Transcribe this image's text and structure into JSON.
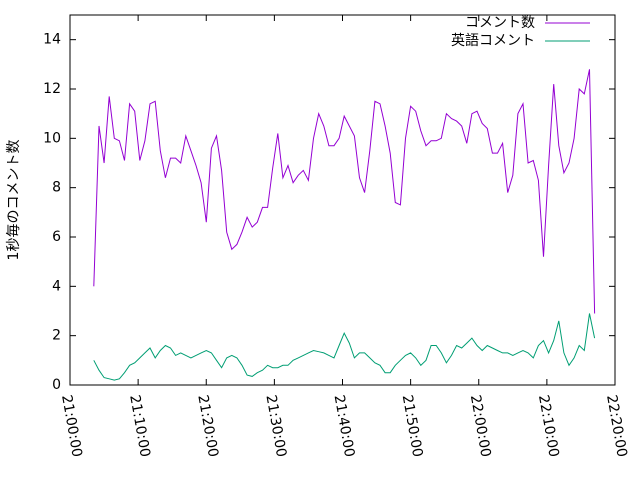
{
  "chart_data": {
    "type": "line",
    "ylabel": "1秒毎のコメント数",
    "x": [
      "21:03:30",
      "21:04:15",
      "21:05:00",
      "21:05:45",
      "21:06:30",
      "21:07:15",
      "21:08:00",
      "21:08:45",
      "21:09:30",
      "21:10:15",
      "21:11:00",
      "21:11:45",
      "21:12:30",
      "21:13:15",
      "21:14:00",
      "21:14:45",
      "21:15:30",
      "21:16:15",
      "21:17:00",
      "21:17:45",
      "21:18:30",
      "21:19:15",
      "21:20:00",
      "21:20:45",
      "21:21:30",
      "21:22:15",
      "21:23:00",
      "21:23:45",
      "21:24:30",
      "21:25:15",
      "21:26:00",
      "21:26:45",
      "21:27:30",
      "21:28:15",
      "21:29:00",
      "21:29:45",
      "21:30:30",
      "21:31:15",
      "21:32:00",
      "21:32:45",
      "21:33:30",
      "21:34:15",
      "21:35:00",
      "21:35:45",
      "21:36:30",
      "21:37:15",
      "21:38:00",
      "21:38:45",
      "21:39:30",
      "21:40:15",
      "21:41:00",
      "21:41:45",
      "21:42:30",
      "21:43:15",
      "21:44:00",
      "21:44:45",
      "21:45:30",
      "21:46:15",
      "21:47:00",
      "21:47:45",
      "21:48:30",
      "21:49:15",
      "21:50:00",
      "21:50:45",
      "21:51:30",
      "21:52:15",
      "21:53:00",
      "21:53:45",
      "21:54:30",
      "21:55:15",
      "21:56:00",
      "21:56:45",
      "21:57:30",
      "21:58:15",
      "21:59:00",
      "21:59:45",
      "22:00:30",
      "22:01:15",
      "22:02:00",
      "22:02:45",
      "22:03:30",
      "22:04:15",
      "22:05:00",
      "22:05:45",
      "22:06:30",
      "22:07:15",
      "22:08:00",
      "22:08:45",
      "22:09:30",
      "22:10:15",
      "22:11:00",
      "22:11:45",
      "22:12:30",
      "22:13:15",
      "22:14:00",
      "22:14:45",
      "22:15:30",
      "22:16:15",
      "22:17:00"
    ],
    "series": [
      {
        "name": "コメント数",
        "color": "#9400d3",
        "values": [
          4.0,
          10.5,
          9.0,
          11.7,
          10.0,
          9.9,
          9.1,
          11.4,
          11.1,
          9.1,
          9.9,
          11.4,
          11.5,
          9.5,
          8.4,
          9.2,
          9.2,
          9.0,
          10.1,
          9.5,
          8.9,
          8.2,
          6.6,
          9.6,
          10.1,
          8.7,
          6.2,
          5.5,
          5.7,
          6.2,
          6.8,
          6.4,
          6.6,
          7.2,
          7.2,
          8.8,
          10.2,
          8.4,
          8.9,
          8.2,
          8.5,
          8.7,
          8.3,
          10.0,
          11.0,
          10.5,
          9.7,
          9.7,
          10.0,
          10.9,
          10.5,
          10.1,
          8.4,
          7.8,
          9.5,
          11.5,
          11.4,
          10.5,
          9.4,
          7.4,
          7.3,
          10.0,
          11.3,
          11.1,
          10.3,
          9.7,
          9.9,
          9.9,
          10.0,
          11.0,
          10.8,
          10.7,
          10.5,
          9.8,
          11.0,
          11.1,
          10.6,
          10.4,
          9.4,
          9.4,
          9.8,
          7.8,
          8.5,
          11.0,
          11.4,
          9.0,
          9.1,
          8.3,
          5.2,
          8.9,
          12.2,
          9.7,
          8.6,
          9.0,
          10.0,
          12.0,
          11.8,
          12.8,
          2.9
        ]
      },
      {
        "name": "英語コメント",
        "color": "#009e73",
        "values": [
          1.0,
          0.6,
          0.3,
          0.25,
          0.2,
          0.25,
          0.5,
          0.8,
          0.9,
          1.1,
          1.3,
          1.5,
          1.1,
          1.4,
          1.6,
          1.5,
          1.2,
          1.3,
          1.2,
          1.1,
          1.2,
          1.3,
          1.4,
          1.3,
          1.0,
          0.7,
          1.1,
          1.2,
          1.1,
          0.8,
          0.4,
          0.35,
          0.5,
          0.6,
          0.8,
          0.7,
          0.7,
          0.8,
          0.8,
          1.0,
          1.1,
          1.2,
          1.3,
          1.4,
          1.35,
          1.3,
          1.2,
          1.1,
          1.6,
          2.1,
          1.7,
          1.1,
          1.3,
          1.3,
          1.1,
          0.9,
          0.8,
          0.5,
          0.5,
          0.8,
          1.0,
          1.2,
          1.3,
          1.1,
          0.8,
          1.0,
          1.6,
          1.6,
          1.3,
          0.9,
          1.2,
          1.6,
          1.5,
          1.7,
          1.9,
          1.6,
          1.4,
          1.6,
          1.5,
          1.4,
          1.3,
          1.3,
          1.2,
          1.3,
          1.4,
          1.3,
          1.1,
          1.6,
          1.8,
          1.3,
          1.8,
          2.6,
          1.3,
          0.8,
          1.1,
          1.6,
          1.4,
          2.9,
          1.9
        ]
      }
    ],
    "xlim": [
      "21:00:00",
      "22:20:00"
    ],
    "xticks": [
      "21:00:00",
      "21:10:00",
      "21:20:00",
      "21:30:00",
      "21:40:00",
      "21:50:00",
      "22:00:00",
      "22:10:00",
      "22:20:00"
    ],
    "ylim": [
      0,
      15
    ],
    "yticks": [
      0,
      2,
      4,
      6,
      8,
      10,
      12,
      14
    ],
    "grid": false,
    "legend": "top-right"
  }
}
